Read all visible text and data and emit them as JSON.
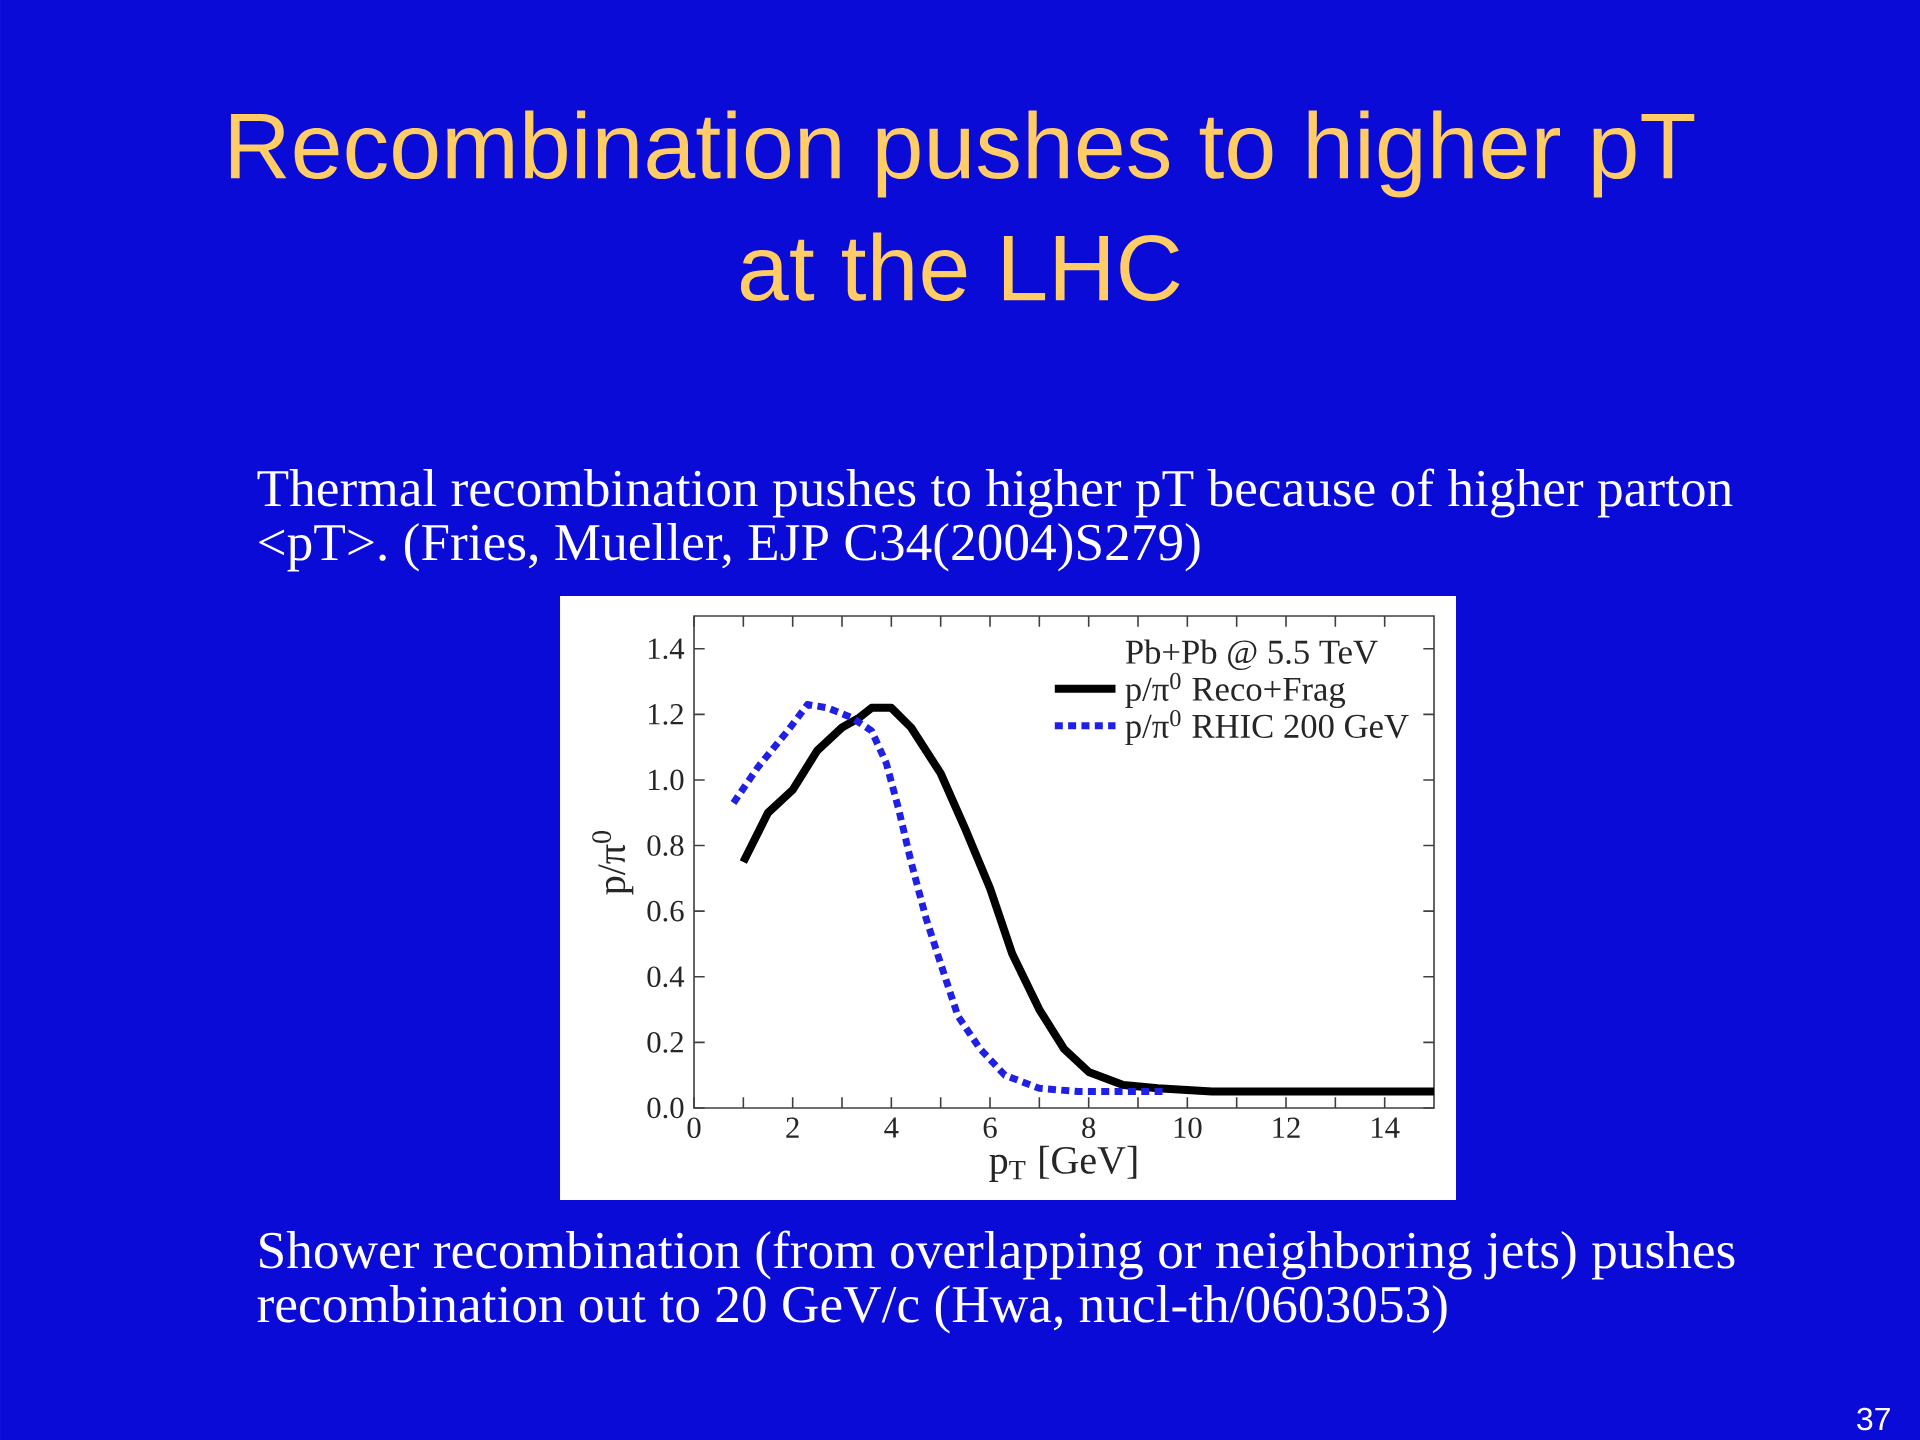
{
  "chart_data": {
    "type": "line",
    "title": "Recombination pushes to higher pT at the LHC",
    "xlabel": "p$_{T}$ [GeV]",
    "ylabel": "p/π$^{0}$",
    "legend_title": "Pb+Pb @ 5.5 TeV",
    "annotations": [
      "Thermal recombination pushes to higher pT because of higher parton <pT>. (Fries, Mueller, EJP C34(2004)S279)",
      "Shower recombination (from overlapping or neighboring jets) pushes recombination out to 20 GeV/c (Hwa, nucl-th/0603053)",
      "37"
    ],
    "series": [
      {
        "name": "p/π$^{0}$ Reco+Frag",
        "color": "#000000",
        "line_style": "solid",
        "x": [
          1.0,
          1.5,
          2.0,
          2.5,
          3.0,
          3.35,
          3.6,
          4.0,
          4.4,
          5.0,
          5.5,
          6.0,
          6.45,
          7.0,
          7.5,
          8.0,
          8.7,
          9.4,
          10.5,
          15
        ],
        "values": [
          0.75,
          0.9,
          0.97,
          1.09,
          1.16,
          1.19,
          1.22,
          1.22,
          1.16,
          1.02,
          0.85,
          0.67,
          0.47,
          0.3,
          0.18,
          0.11,
          0.07,
          0.06,
          0.05,
          0.05
        ]
      },
      {
        "name": "p/π$^{0}$ RHIC 200 GeV",
        "color": "#1f1fe6",
        "line_style": "dotted",
        "x": [
          0.8,
          1.3,
          1.9,
          2.3,
          2.7,
          3.2,
          3.6,
          3.9,
          4.15,
          4.4,
          4.7,
          5.0,
          5.35,
          5.8,
          6.3,
          7.0,
          7.8,
          8.6,
          9.5
        ],
        "values": [
          0.93,
          1.04,
          1.15,
          1.23,
          1.22,
          1.19,
          1.15,
          1.05,
          0.91,
          0.75,
          0.58,
          0.44,
          0.28,
          0.18,
          0.1,
          0.06,
          0.05,
          0.05,
          0.05
        ]
      }
    ],
    "xlim": [
      0,
      15
    ],
    "ylim": [
      0,
      1.5
    ],
    "xticks": [
      0,
      {
        "value": 1,
        "label": null
      },
      2,
      {
        "value": 3,
        "label": null
      },
      4,
      {
        "value": 5,
        "label": null
      },
      6,
      {
        "value": 7,
        "label": null
      },
      8,
      {
        "value": 9,
        "label": null
      },
      10,
      {
        "value": 11,
        "label": null
      },
      12,
      {
        "value": 13,
        "label": null
      },
      14
    ],
    "yticks": [
      {
        "value": 0,
        "label": "0.0"
      },
      0.2,
      0.4,
      0.6,
      0.8,
      {
        "value": 1,
        "label": "1.0"
      },
      1.2,
      1.4
    ],
    "legend": "top right",
    "marker": "none"
  }
}
